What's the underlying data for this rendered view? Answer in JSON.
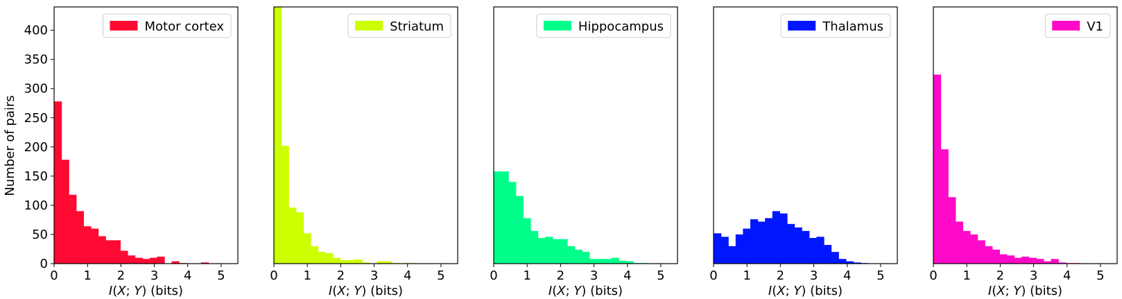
{
  "figure": {
    "ylabel": "Number of pairs",
    "xlabel_parts": {
      "i": "I",
      "open": "(",
      "x": "X",
      "sep": "; ",
      "y": "Y",
      "close": ") (bits)"
    }
  },
  "chart_data": [
    {
      "type": "bar",
      "legend": "Motor cortex",
      "color": "#ff0a32",
      "bin_width": 0.22,
      "xlim": [
        0,
        5.5
      ],
      "ylim": [
        0,
        440
      ],
      "xticks": [
        0,
        1,
        2,
        3,
        4,
        5
      ],
      "yticks": [
        0,
        50,
        100,
        150,
        200,
        250,
        300,
        350,
        400
      ],
      "counts": [
        278,
        178,
        118,
        90,
        64,
        60,
        47,
        40,
        40,
        22,
        14,
        10,
        8,
        10,
        12,
        0,
        4,
        1,
        0,
        0,
        2,
        0,
        0,
        0,
        0
      ]
    },
    {
      "type": "bar",
      "legend": "Striatum",
      "color": "#ccff00",
      "bin_width": 0.22,
      "xlim": [
        0,
        5.5
      ],
      "ylim": [
        0,
        440
      ],
      "xticks": [
        0,
        1,
        2,
        3,
        4,
        5
      ],
      "counts": [
        440,
        202,
        96,
        88,
        52,
        30,
        20,
        18,
        10,
        6,
        6,
        7,
        2,
        0,
        4,
        4,
        1,
        0,
        1,
        0,
        0,
        0,
        0,
        0,
        0
      ]
    },
    {
      "type": "bar",
      "legend": "Hippocampus",
      "color": "#00ff8a",
      "bin_width": 0.22,
      "xlim": [
        0,
        5.5
      ],
      "ylim": [
        0,
        440
      ],
      "xticks": [
        0,
        1,
        2,
        3,
        4,
        5
      ],
      "counts": [
        158,
        158,
        140,
        116,
        78,
        56,
        44,
        46,
        42,
        42,
        30,
        24,
        20,
        8,
        8,
        8,
        10,
        5,
        4,
        1,
        1,
        0,
        0,
        0,
        0
      ]
    },
    {
      "type": "bar",
      "legend": "Thalamus",
      "color": "#0016ff",
      "bin_width": 0.22,
      "xlim": [
        0,
        5.5
      ],
      "ylim": [
        0,
        440
      ],
      "xticks": [
        0,
        1,
        2,
        3,
        4,
        5
      ],
      "counts": [
        52,
        46,
        30,
        50,
        60,
        76,
        72,
        78,
        90,
        86,
        68,
        62,
        56,
        44,
        46,
        32,
        20,
        8,
        4,
        2,
        1,
        0,
        0,
        0,
        0
      ]
    },
    {
      "type": "bar",
      "legend": "V1",
      "color": "#ff0ac8",
      "bin_width": 0.22,
      "xlim": [
        0,
        5.5
      ],
      "ylim": [
        0,
        440
      ],
      "xticks": [
        0,
        1,
        2,
        3,
        4,
        5
      ],
      "counts": [
        324,
        196,
        114,
        72,
        56,
        50,
        40,
        30,
        24,
        16,
        14,
        10,
        12,
        10,
        8,
        4,
        8,
        2,
        1,
        1,
        0,
        0,
        0,
        0,
        0
      ]
    }
  ]
}
